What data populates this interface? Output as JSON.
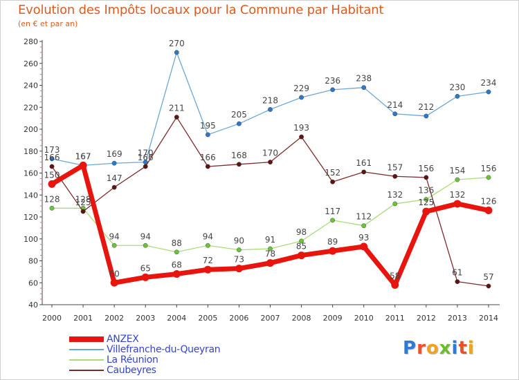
{
  "header": {
    "title": "Evolution des Impôts locaux pour la Commune par Habitant",
    "subtitle": "(en € et par an)"
  },
  "logo": {
    "text": "Proxiti",
    "letters": [
      {
        "char": "P",
        "color": "#2e7bd6"
      },
      {
        "char": "r",
        "color": "#e8512a"
      },
      {
        "char": "o",
        "color": "#f0a31c"
      },
      {
        "char": "x",
        "color": "#6bbf2a"
      },
      {
        "char": "i",
        "color": "#2e7bd6"
      },
      {
        "char": "t",
        "color": "#e8512a"
      },
      {
        "char": "i",
        "color": "#f0a31c"
      }
    ]
  },
  "chart_data": {
    "type": "line",
    "title": "Evolution des Impôts locaux pour la Commune par Habitant",
    "subtitle": "(en € et par an)",
    "xlabel": "",
    "ylabel": "",
    "x": [
      "2000",
      "2001",
      "2002",
      "2003",
      "2004",
      "2005",
      "2006",
      "2007",
      "2008",
      "2009",
      "2010",
      "2011",
      "2012",
      "2013",
      "2014"
    ],
    "ylim": [
      40,
      280
    ],
    "yticks": [
      40,
      60,
      80,
      100,
      120,
      140,
      160,
      180,
      200,
      220,
      240,
      260,
      280
    ],
    "grid": false,
    "legend_position": "bottom-left",
    "series": [
      {
        "name": "Villefranche-du-Queyran",
        "color": "#6aa6d6",
        "marker": "#2f78c4",
        "width": 1.3,
        "values": [
          173,
          167,
          169,
          170,
          270,
          195,
          205,
          218,
          229,
          236,
          238,
          214,
          212,
          230,
          234
        ]
      },
      {
        "name": "La Réunion",
        "color": "#a8dc78",
        "marker": "#6cc23a",
        "width": 1.3,
        "values": [
          128,
          128,
          94,
          94,
          88,
          94,
          90,
          91,
          98,
          117,
          112,
          132,
          136,
          154,
          156
        ]
      },
      {
        "name": "Caubeyres",
        "color": "#7a2a2a",
        "marker": "#5c1414",
        "width": 1.3,
        "values": [
          166,
          125,
          147,
          166,
          211,
          166,
          168,
          170,
          193,
          152,
          161,
          157,
          156,
          61,
          57
        ]
      },
      {
        "name": "ANZEX",
        "color": "#e8140e",
        "marker": "#e8140e",
        "width": 7,
        "values": [
          150,
          167,
          60,
          65,
          68,
          72,
          73,
          78,
          85,
          89,
          93,
          58,
          125,
          132,
          126
        ]
      }
    ],
    "legend_order": [
      "ANZEX",
      "Villefranche-du-Queyran",
      "La Réunion",
      "Caubeyres"
    ]
  }
}
